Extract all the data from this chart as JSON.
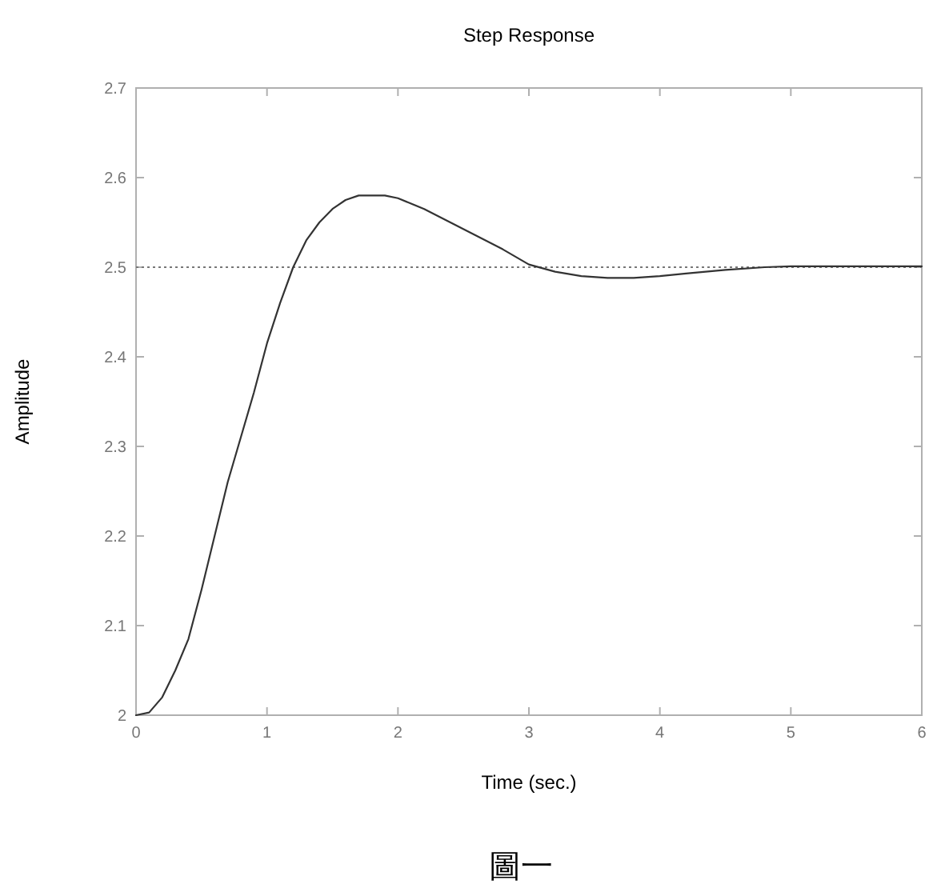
{
  "chart_data": {
    "type": "line",
    "title": "Step Response",
    "xlabel": "Time (sec.)",
    "ylabel": "Amplitude",
    "annotations": [
      "圖一"
    ],
    "x": [
      0,
      0.1,
      0.2,
      0.3,
      0.4,
      0.5,
      0.6,
      0.7,
      0.8,
      0.9,
      1.0,
      1.1,
      1.2,
      1.3,
      1.4,
      1.5,
      1.6,
      1.7,
      1.8,
      1.9,
      2.0,
      2.2,
      2.4,
      2.6,
      2.8,
      3.0,
      3.2,
      3.4,
      3.6,
      3.8,
      4.0,
      4.2,
      4.5,
      4.8,
      5.0,
      6.0
    ],
    "values": [
      2.0,
      2.003,
      2.02,
      2.05,
      2.085,
      2.14,
      2.2,
      2.26,
      2.31,
      2.36,
      2.415,
      2.46,
      2.5,
      2.53,
      2.55,
      2.565,
      2.575,
      2.58,
      2.58,
      2.58,
      2.577,
      2.565,
      2.55,
      2.535,
      2.52,
      2.503,
      2.495,
      2.49,
      2.488,
      2.488,
      2.49,
      2.493,
      2.497,
      2.5,
      2.501,
      2.501
    ],
    "color": "#333333",
    "xlim": [
      0,
      6
    ],
    "ylim": [
      2,
      2.7
    ],
    "xticks": [
      0,
      1,
      2,
      3,
      4,
      5,
      6
    ],
    "yticks": [
      2,
      2.1,
      2.2,
      2.3,
      2.4,
      2.5,
      2.6,
      2.7
    ],
    "ref_lines": [
      {
        "axis": "y",
        "value": 2.5,
        "color": "#777777",
        "line_style": "dotted"
      }
    ]
  }
}
